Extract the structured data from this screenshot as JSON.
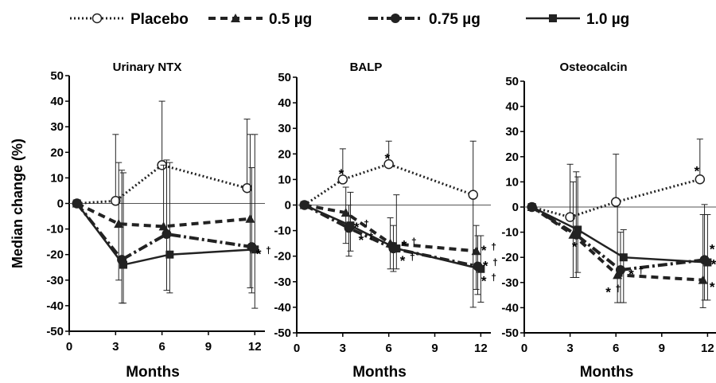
{
  "legend": {
    "entries": [
      {
        "name": "Placebo",
        "marker": "circle",
        "dash": "2,3",
        "width": 3
      },
      {
        "name": "0.5 µg",
        "marker": "triangle",
        "dash": "9,6",
        "width": 4
      },
      {
        "name": "0.75 µg",
        "marker": "dot",
        "dash": "12,4,3,4",
        "width": 4
      },
      {
        "name": "1.0 µg",
        "marker": "square",
        "dash": "",
        "width": 2.5
      }
    ]
  },
  "colors": {
    "line": "#222222",
    "axis": "#000000"
  },
  "chart_data": [
    {
      "type": "line",
      "title": "Urinary NTX",
      "xlabel": "Months",
      "ylabel": "Median change (%)",
      "xlim": [
        0,
        12.5
      ],
      "ylim": [
        -50,
        50
      ],
      "xticks": [
        "0",
        "3",
        "6",
        "9",
        "12"
      ],
      "yticks": [
        "50",
        "40",
        "30",
        "20",
        "10",
        "0",
        "-10",
        "-20",
        "-30",
        "-40",
        "-50"
      ],
      "series": [
        {
          "name": "Placebo",
          "x": [
            0.5,
            3,
            6,
            11.5
          ],
          "y": [
            0,
            1,
            15,
            6
          ],
          "lo": [
            null,
            null,
            null,
            null
          ],
          "hi": [
            null,
            27,
            40,
            33
          ]
        },
        {
          "name": "0.5 µg",
          "x": [
            0.5,
            3.2,
            6.1,
            11.7
          ],
          "y": [
            0,
            -8,
            -9,
            -6
          ],
          "lo": [
            null,
            -30,
            null,
            -33
          ],
          "hi": [
            null,
            16,
            15,
            27
          ]
        },
        {
          "name": "0.75 µg",
          "x": [
            0.5,
            3.4,
            6.3,
            11.8
          ],
          "y": [
            0,
            -22,
            -12,
            -17
          ],
          "lo": [
            null,
            -39,
            -34,
            -35
          ],
          "hi": [
            null,
            13,
            17,
            14
          ]
        },
        {
          "name": "1.0 µg",
          "x": [
            0.5,
            3.5,
            6.5,
            12
          ],
          "y": [
            0,
            -24,
            -20,
            -18
          ],
          "lo": [
            null,
            -39,
            -35,
            -41
          ],
          "hi": [
            null,
            12,
            16,
            27
          ]
        }
      ],
      "annotations": [
        {
          "text": "*",
          "dagger": "†",
          "x": 12.25,
          "y": -19
        }
      ]
    },
    {
      "type": "line",
      "title": "BALP",
      "xlabel": "Months",
      "ylabel": "",
      "xlim": [
        0,
        12.5
      ],
      "ylim": [
        -50,
        50
      ],
      "xticks": [
        "0",
        "3",
        "6",
        "9",
        "12"
      ],
      "yticks": [
        "50",
        "40",
        "30",
        "20",
        "10",
        "0",
        "-10",
        "-20",
        "-30",
        "-40",
        "-50"
      ],
      "series": [
        {
          "name": "Placebo",
          "x": [
            0.5,
            3,
            6,
            11.5
          ],
          "y": [
            0,
            10,
            16,
            4
          ],
          "lo": [
            null,
            null,
            null,
            -40
          ],
          "hi": [
            null,
            22,
            25,
            25
          ]
        },
        {
          "name": "0.5 µg",
          "x": [
            0.5,
            3.2,
            6.1,
            11.7
          ],
          "y": [
            0,
            -3,
            -15,
            -18
          ],
          "lo": [
            null,
            -15,
            -25,
            -33
          ],
          "hi": [
            null,
            7,
            -5,
            -8
          ]
        },
        {
          "name": "0.75 µg",
          "x": [
            0.5,
            3.4,
            6.3,
            11.8
          ],
          "y": [
            0,
            -9,
            -17,
            -24
          ],
          "lo": [
            null,
            -20,
            -26,
            -35
          ],
          "hi": [
            null,
            0,
            -8,
            -12
          ]
        },
        {
          "name": "1.0 µg",
          "x": [
            0.5,
            3.5,
            6.5,
            12
          ],
          "y": [
            0,
            -8,
            -17,
            -25
          ],
          "lo": [
            null,
            -18,
            -25,
            -38
          ],
          "hi": [
            null,
            5,
            4,
            -12
          ]
        }
      ],
      "annotations": [
        {
          "text": "*",
          "dagger": "",
          "x": 2.9,
          "y": 13
        },
        {
          "text": "*",
          "dagger": "",
          "x": 5.9,
          "y": 19
        },
        {
          "text": "*",
          "dagger": "†",
          "x": 3.9,
          "y": -8
        },
        {
          "text": "*",
          "dagger": "†",
          "x": 4.2,
          "y": -13
        },
        {
          "text": "*",
          "dagger": "†",
          "x": 7.0,
          "y": -15
        },
        {
          "text": "*",
          "dagger": "†",
          "x": 6.9,
          "y": -21
        },
        {
          "text": "*",
          "dagger": "†",
          "x": 12.2,
          "y": -17
        },
        {
          "text": "*",
          "dagger": "†",
          "x": 12.3,
          "y": -23
        },
        {
          "text": "*",
          "dagger": "†",
          "x": 12.2,
          "y": -29
        }
      ]
    },
    {
      "type": "line",
      "title": "Osteocalcin",
      "xlabel": "Months",
      "ylabel": "",
      "xlim": [
        0,
        12.5
      ],
      "ylim": [
        -50,
        50
      ],
      "xticks": [
        "0",
        "3",
        "6",
        "9",
        "12"
      ],
      "yticks": [
        "50",
        "40",
        "30",
        "20",
        "10",
        "0",
        "-10",
        "-20",
        "-30",
        "-40",
        "-50"
      ],
      "series": [
        {
          "name": "Placebo",
          "x": [
            0.5,
            3,
            6,
            11.5
          ],
          "y": [
            0,
            -4,
            2,
            11
          ],
          "lo": [
            null,
            null,
            null,
            null
          ],
          "hi": [
            null,
            17,
            21,
            27
          ]
        },
        {
          "name": "0.5 µg",
          "x": [
            0.5,
            3.2,
            6.1,
            11.7
          ],
          "y": [
            0,
            -11,
            -27,
            -29
          ],
          "lo": [
            null,
            -28,
            -38,
            -40
          ],
          "hi": [
            null,
            10,
            0,
            -3
          ]
        },
        {
          "name": "0.75 µg",
          "x": [
            0.5,
            3.4,
            6.3,
            11.8
          ],
          "y": [
            0,
            -11,
            -25,
            -21
          ],
          "lo": [
            null,
            -28,
            -38,
            -37
          ],
          "hi": [
            null,
            14,
            -10,
            1
          ]
        },
        {
          "name": "1.0 µg",
          "x": [
            0.5,
            3.5,
            6.5,
            12
          ],
          "y": [
            0,
            -9,
            -20,
            -22
          ],
          "lo": [
            null,
            -26,
            -38,
            -37
          ],
          "hi": [
            null,
            12,
            -9,
            -3
          ]
        }
      ],
      "annotations": [
        {
          "text": "*",
          "dagger": "",
          "x": 11.3,
          "y": 15
        },
        {
          "text": "*",
          "dagger": "",
          "x": 3.3,
          "y": -15
        },
        {
          "text": "*",
          "dagger": "†",
          "x": 5.5,
          "y": -33
        },
        {
          "text": "*",
          "dagger": "†",
          "x": 7.0,
          "y": -26
        },
        {
          "text": "*",
          "dagger": "†",
          "x": 12.3,
          "y": -16
        },
        {
          "text": "*",
          "dagger": "",
          "x": 12.4,
          "y": -22
        },
        {
          "text": "*",
          "dagger": "†",
          "x": 12.3,
          "y": -31
        }
      ]
    }
  ]
}
